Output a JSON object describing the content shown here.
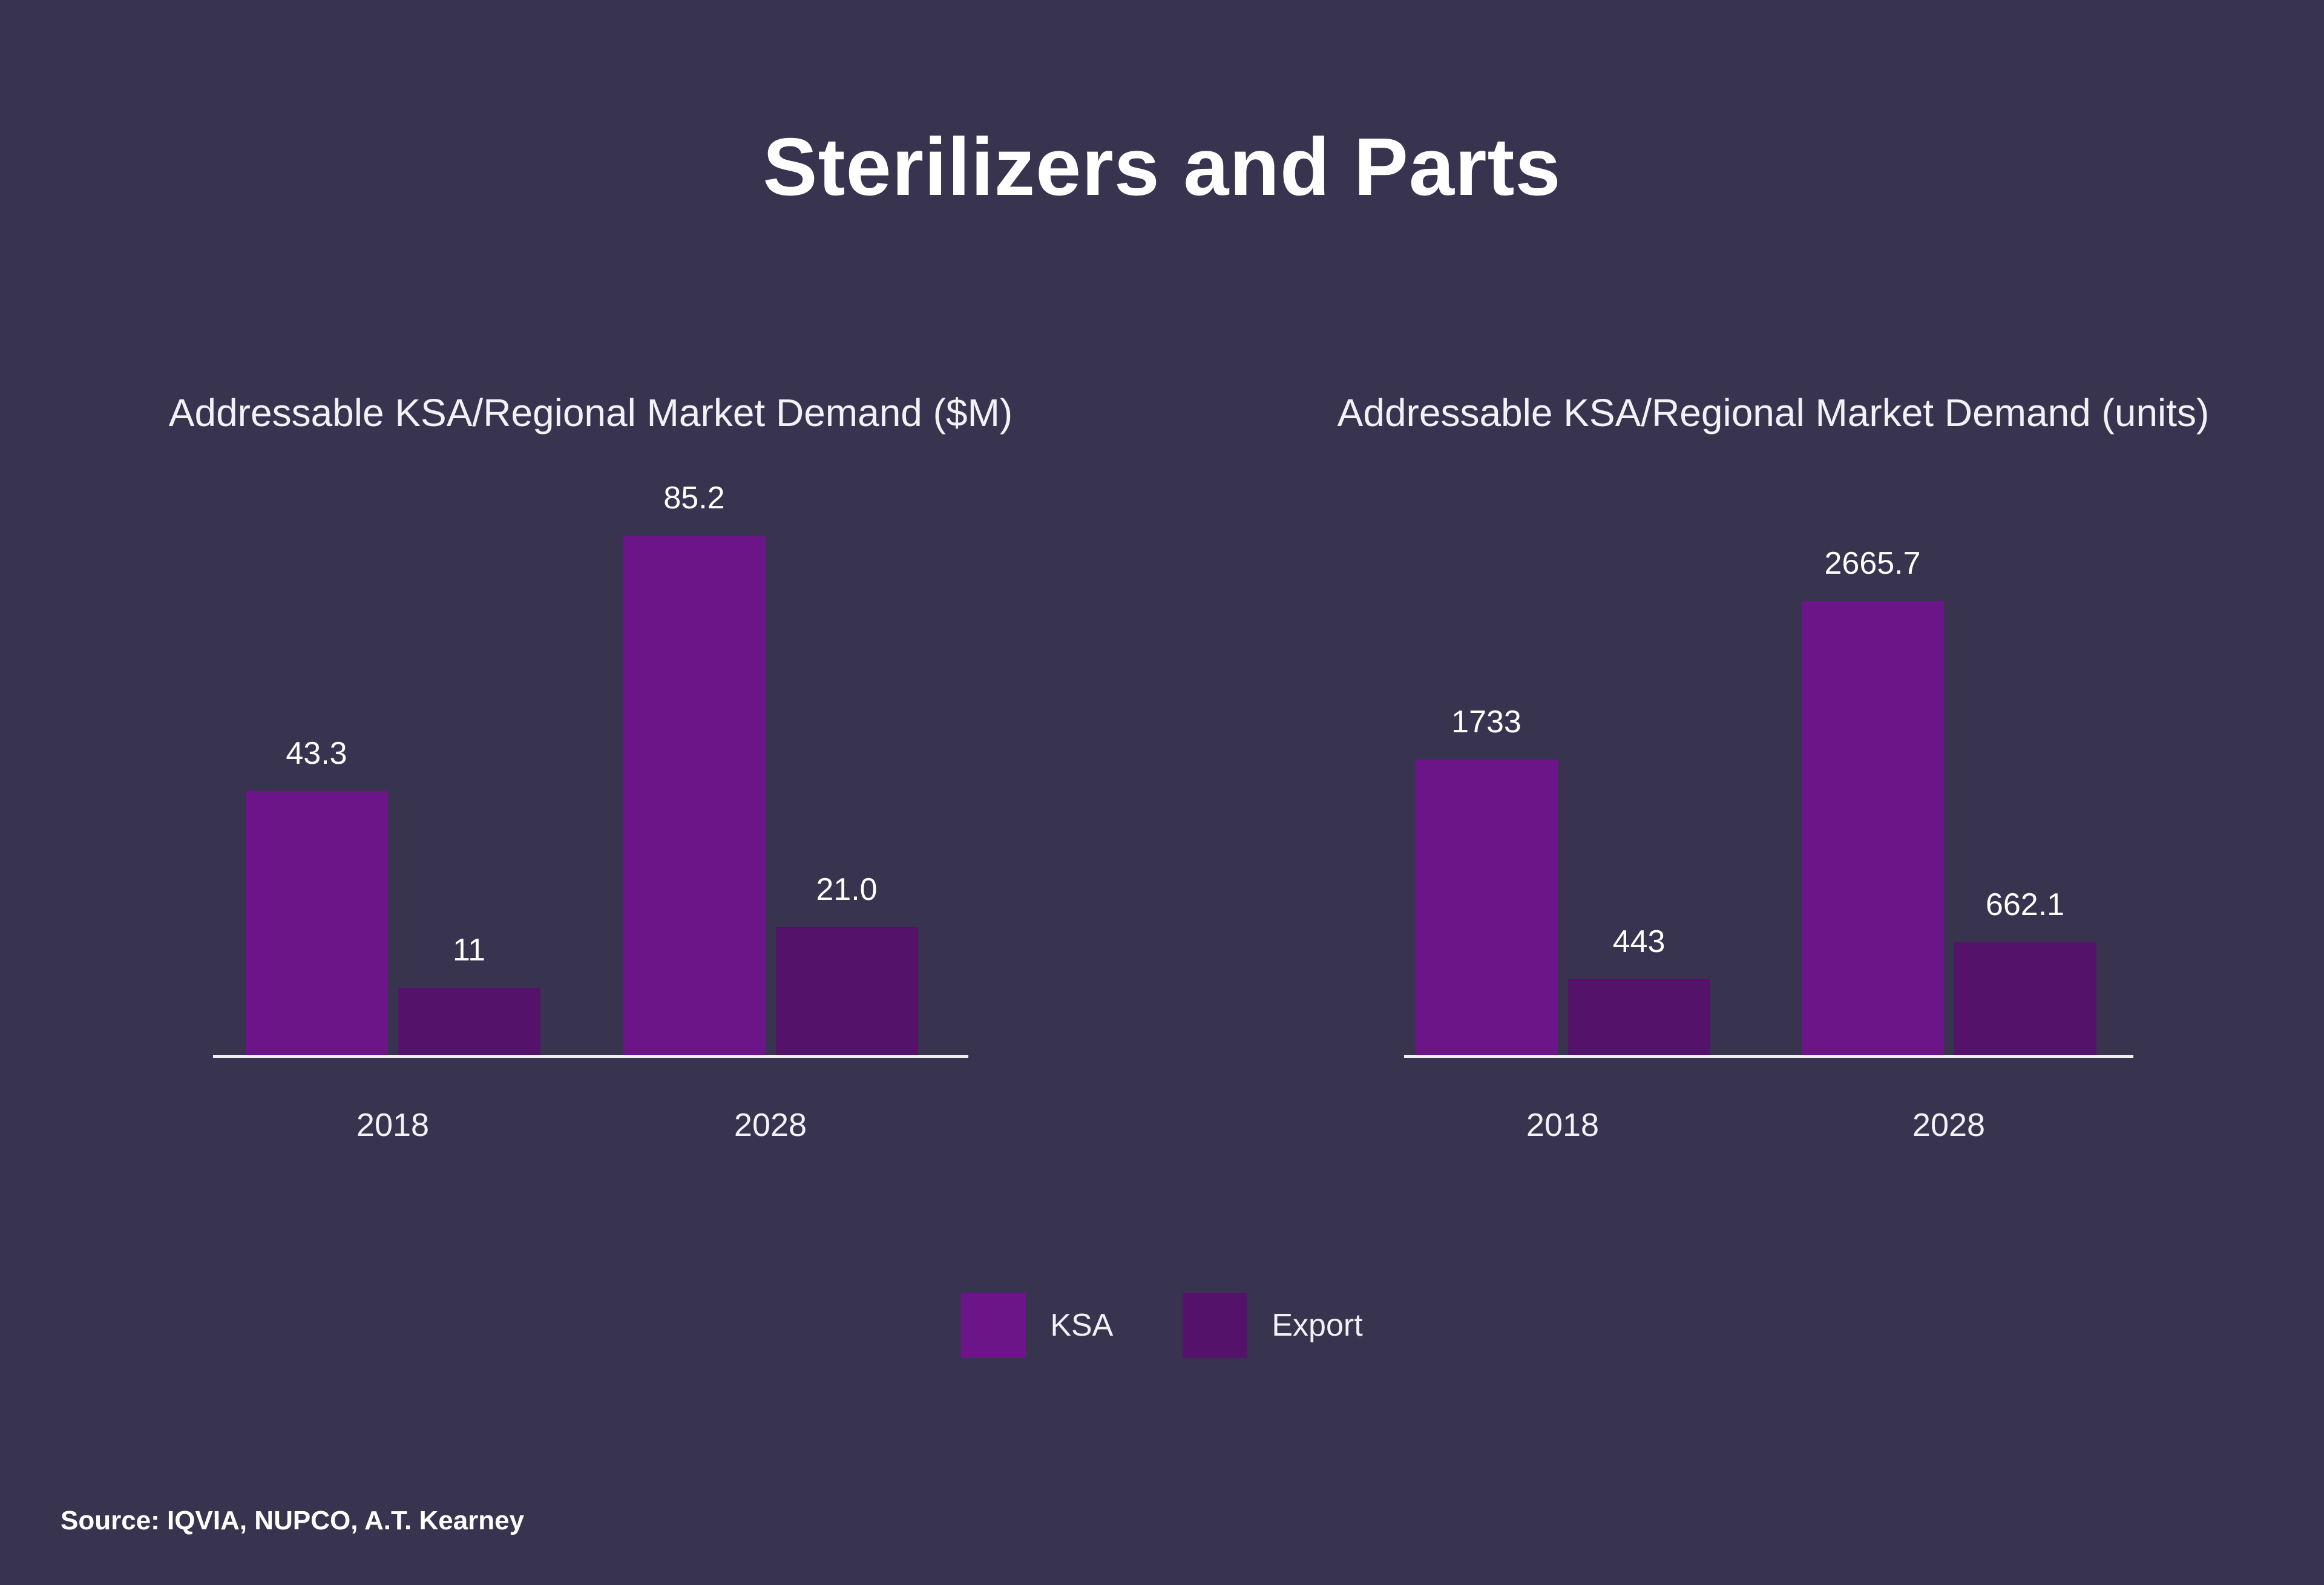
{
  "page": {
    "title": "Sterilizers and Parts",
    "source": "Source: IQVIA, NUPCO, A.T. Kearney",
    "background": "#383450"
  },
  "colors": {
    "ksa": "#6b1589",
    "export": "#55126b",
    "axis_line": "#f0eff4",
    "text": "#ffffff"
  },
  "legend": {
    "position": "bottom-center",
    "items": [
      {
        "label": "KSA",
        "color": "#6b1589"
      },
      {
        "label": "Export",
        "color": "#55126b"
      }
    ]
  },
  "chart_data": [
    {
      "type": "bar",
      "title": "Addressable KSA/Regional Market Demand ($M)",
      "categories": [
        "2018",
        "2028"
      ],
      "series": [
        {
          "name": "KSA",
          "color": "#6b1589",
          "values": [
            43.3,
            85.2
          ],
          "value_labels": [
            "43.3",
            "85.2"
          ]
        },
        {
          "name": "Export",
          "color": "#55126b",
          "values": [
            11,
            21.0
          ],
          "value_labels": [
            "11",
            "21.0"
          ]
        }
      ],
      "ylim": [
        0,
        90
      ],
      "grid": false,
      "show_value_labels": true,
      "legend_position": "bottom-center"
    },
    {
      "type": "bar",
      "title": "Addressable KSA/Regional Market Demand (units)",
      "categories": [
        "2018",
        "2028"
      ],
      "series": [
        {
          "name": "KSA",
          "color": "#6b1589",
          "values": [
            1733,
            2665.7
          ],
          "value_labels": [
            "1733",
            "2665.7"
          ]
        },
        {
          "name": "Export",
          "color": "#55126b",
          "values": [
            443,
            662.1
          ],
          "value_labels": [
            "443",
            "662.1"
          ]
        }
      ],
      "ylim": [
        0,
        2800
      ],
      "grid": false,
      "show_value_labels": true,
      "legend_position": "bottom-center"
    }
  ]
}
